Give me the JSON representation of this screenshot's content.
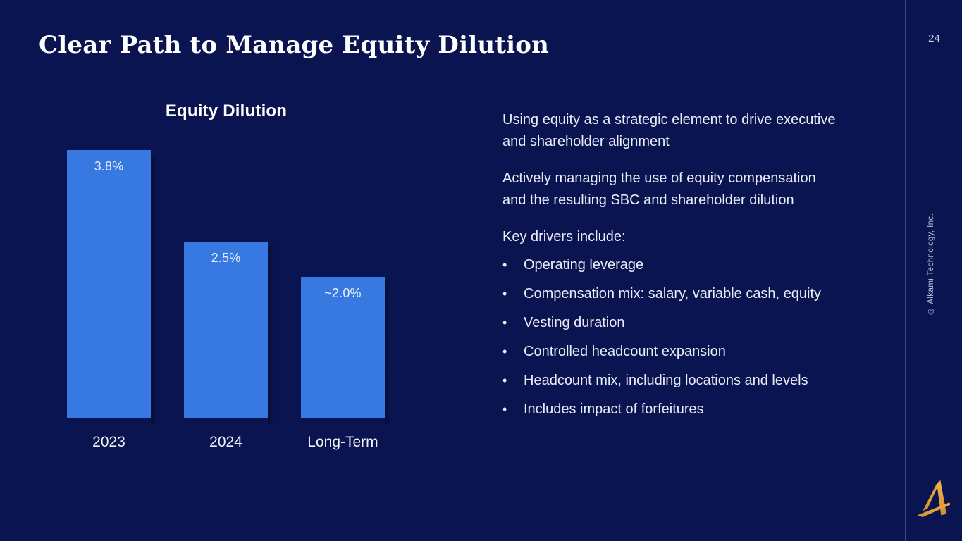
{
  "slide": {
    "title": "Clear Path to Manage Equity Dilution",
    "page_number": "24",
    "copyright_vertical": "© Alkami Technology, Inc.",
    "logo": "alkami-a-logo"
  },
  "chart_data": {
    "type": "bar",
    "title": "Equity Dilution",
    "categories": [
      "2023",
      "2024",
      "Long-Term"
    ],
    "values": [
      3.8,
      2.5,
      2.0
    ],
    "value_labels": [
      "3.8%",
      "2.5%",
      "~2.0%"
    ],
    "xlabel": "",
    "ylabel": "",
    "ylim": [
      0,
      4
    ],
    "grid": false,
    "legend": false,
    "bar_color": "#3779E0",
    "label_color": "#EAF1FB"
  },
  "content": {
    "paragraphs": [
      "Using equity as a strategic element to drive executive and shareholder alignment",
      "Actively managing the use of equity compensation and the resulting SBC and shareholder dilution"
    ],
    "drivers_heading": "Key drivers include:",
    "bullet_char": "•",
    "bullets": [
      "Operating leverage",
      "Compensation mix: salary, variable cash, equity",
      "Vesting duration",
      "Controlled headcount expansion",
      "Headcount mix, including locations and levels",
      "Includes impact of forfeitures"
    ]
  },
  "colors": {
    "background": "#0A1450",
    "bar": "#3779E0",
    "divider": "#3C4B7E",
    "accent_gold": "#E9A93E",
    "text": "#E9EDF6",
    "muted_text": "#B9C1D8"
  }
}
